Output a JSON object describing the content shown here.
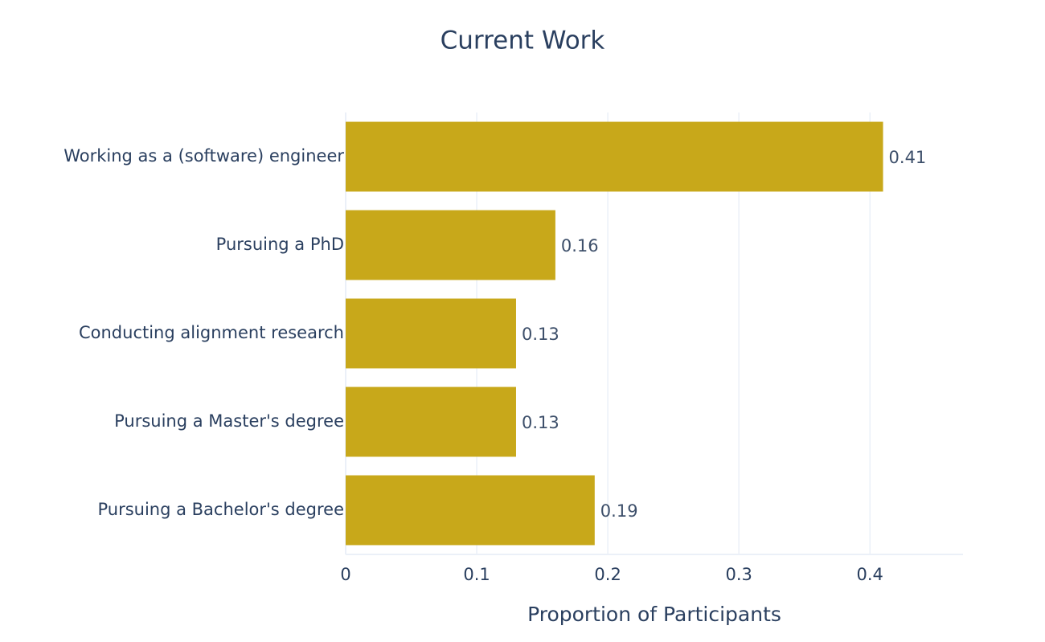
{
  "chart_data": {
    "type": "bar",
    "orientation": "horizontal",
    "title": "Current Work",
    "xlabel": "Proportion of Participants",
    "categories": [
      "Working as a (software) engineer",
      "Pursuing a PhD",
      "Conducting alignment research",
      "Pursuing a Master's degree",
      "Pursuing a Bachelor's degree"
    ],
    "values": [
      0.41,
      0.16,
      0.13,
      0.13,
      0.19
    ],
    "color": "#c8a81a",
    "xlim": [
      0,
      0.471
    ],
    "xticks": [
      0,
      0.1,
      0.2,
      0.3,
      0.4
    ],
    "grid": true
  }
}
